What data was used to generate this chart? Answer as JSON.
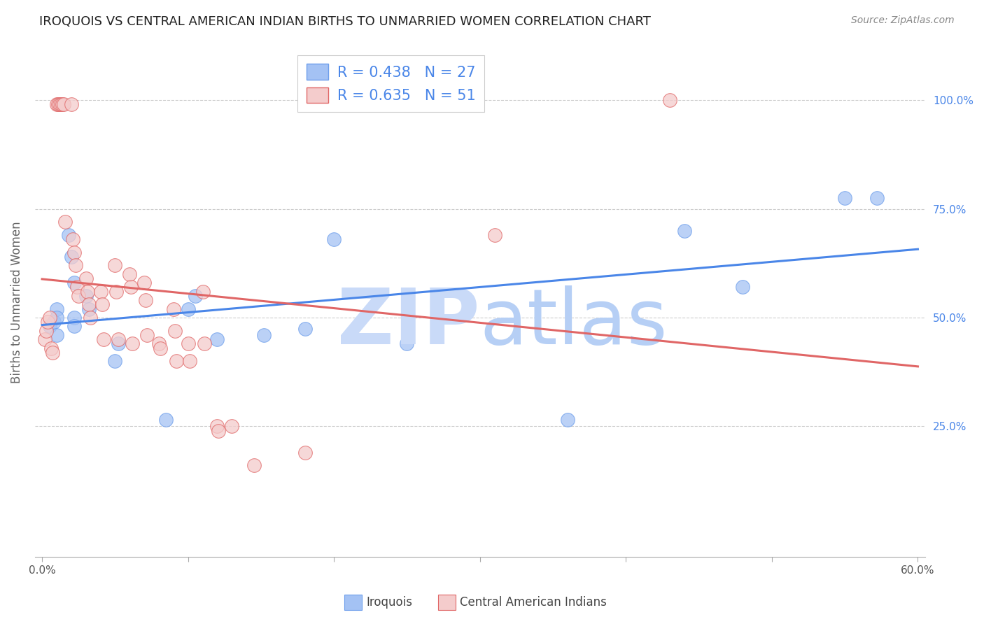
{
  "title": "IROQUOIS VS CENTRAL AMERICAN INDIAN BIRTHS TO UNMARRIED WOMEN CORRELATION CHART",
  "source": "Source: ZipAtlas.com",
  "ylabel": "Births to Unmarried Women",
  "ytick_labels": [
    "25.0%",
    "50.0%",
    "75.0%",
    "100.0%"
  ],
  "ytick_values": [
    0.25,
    0.5,
    0.75,
    1.0
  ],
  "xlim": [
    -0.005,
    0.605
  ],
  "ylim": [
    -0.05,
    1.12
  ],
  "iroquois_R": 0.438,
  "iroquois_N": 27,
  "central_R": 0.635,
  "central_N": 51,
  "iroquois_color": "#a4c2f4",
  "central_color": "#f4cccc",
  "iroquois_edge_color": "#6d9eeb",
  "central_edge_color": "#e06666",
  "iroquois_line_color": "#4a86e8",
  "central_line_color": "#e06666",
  "label_color": "#4a86e8",
  "plot_bg_color": "#ffffff",
  "grid_color": "#cccccc",
  "iroquois_x": [
    0.005,
    0.008,
    0.01,
    0.01,
    0.01,
    0.018,
    0.02,
    0.022,
    0.022,
    0.022,
    0.03,
    0.032,
    0.05,
    0.052,
    0.085,
    0.1,
    0.105,
    0.12,
    0.152,
    0.18,
    0.2,
    0.25,
    0.36,
    0.44,
    0.48,
    0.55,
    0.572
  ],
  "iroquois_y": [
    0.48,
    0.49,
    0.52,
    0.5,
    0.46,
    0.69,
    0.64,
    0.58,
    0.5,
    0.48,
    0.55,
    0.52,
    0.4,
    0.44,
    0.265,
    0.52,
    0.55,
    0.45,
    0.46,
    0.475,
    0.68,
    0.44,
    0.265,
    0.7,
    0.57,
    0.775,
    0.775
  ],
  "central_x": [
    0.002,
    0.003,
    0.004,
    0.005,
    0.006,
    0.007,
    0.01,
    0.011,
    0.012,
    0.013,
    0.014,
    0.015,
    0.016,
    0.02,
    0.021,
    0.022,
    0.023,
    0.024,
    0.025,
    0.03,
    0.031,
    0.032,
    0.033,
    0.04,
    0.041,
    0.042,
    0.05,
    0.051,
    0.052,
    0.06,
    0.061,
    0.062,
    0.07,
    0.071,
    0.072,
    0.08,
    0.081,
    0.09,
    0.091,
    0.092,
    0.1,
    0.101,
    0.11,
    0.111,
    0.12,
    0.121,
    0.13,
    0.145,
    0.18,
    0.31,
    0.43
  ],
  "central_y": [
    0.45,
    0.47,
    0.49,
    0.5,
    0.43,
    0.42,
    0.99,
    0.99,
    0.99,
    0.99,
    0.99,
    0.99,
    0.72,
    0.99,
    0.68,
    0.65,
    0.62,
    0.57,
    0.55,
    0.59,
    0.56,
    0.53,
    0.5,
    0.56,
    0.53,
    0.45,
    0.62,
    0.56,
    0.45,
    0.6,
    0.57,
    0.44,
    0.58,
    0.54,
    0.46,
    0.44,
    0.43,
    0.52,
    0.47,
    0.4,
    0.44,
    0.4,
    0.56,
    0.44,
    0.25,
    0.24,
    0.25,
    0.16,
    0.19,
    0.69,
    1.0
  ],
  "xtick_positions": [
    0.0,
    0.1,
    0.2,
    0.3,
    0.4,
    0.5,
    0.6
  ],
  "xtick_labels": [
    "0.0%",
    "",
    "",
    "",
    "",
    "",
    "60.0%"
  ]
}
